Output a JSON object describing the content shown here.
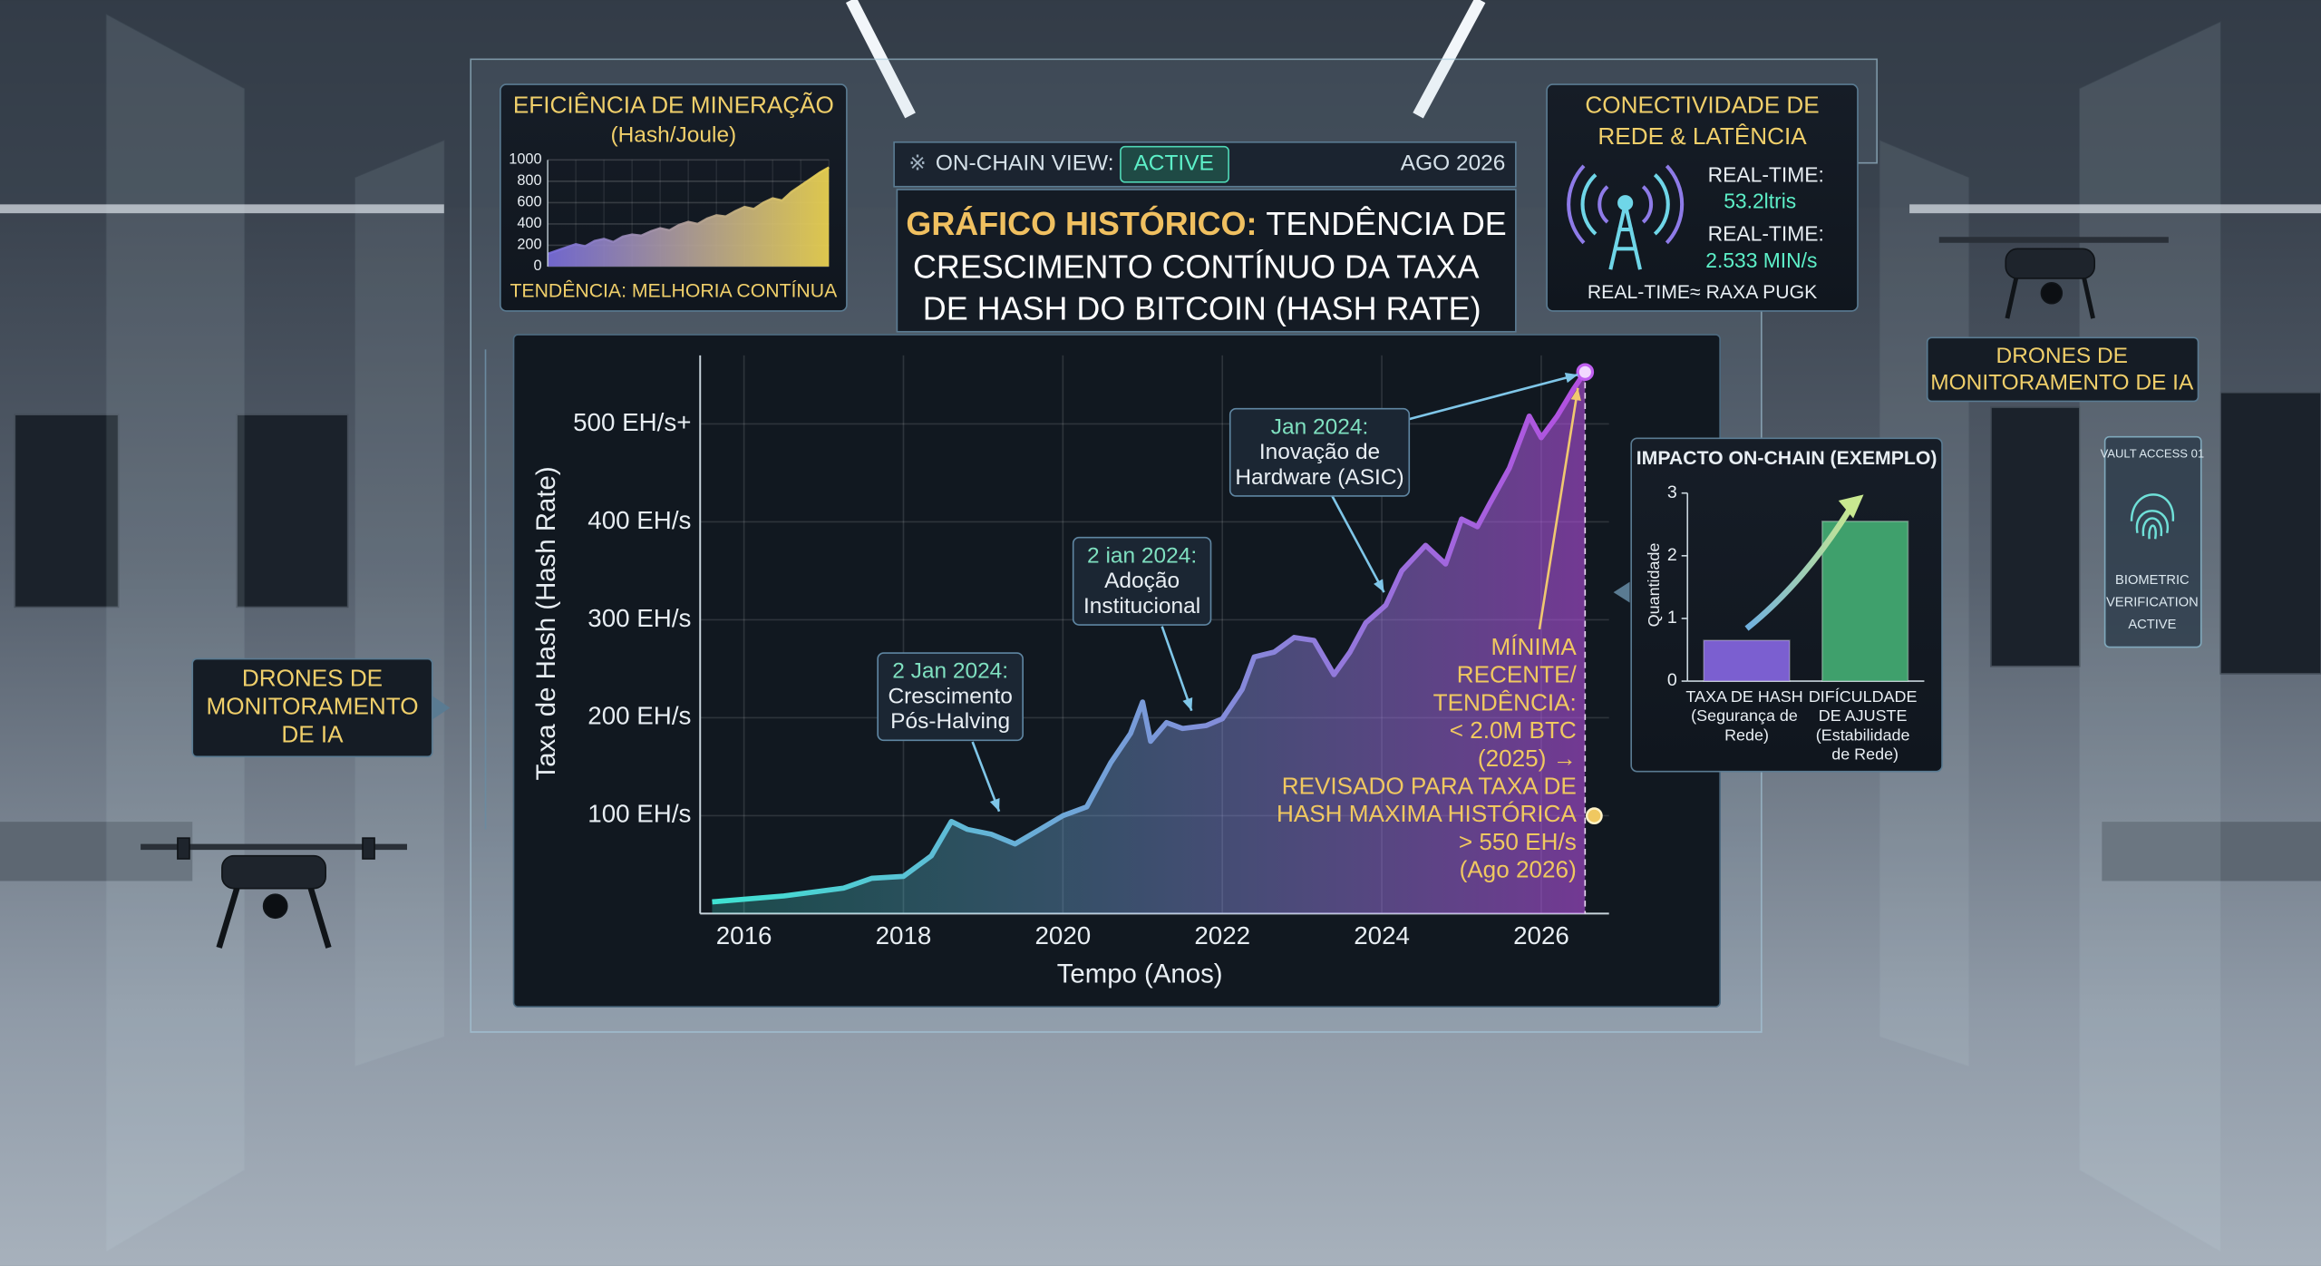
{
  "status_bar": {
    "label": "ON-CHAIN VIEW:",
    "state": "ACTIVE",
    "date": "AGO 2026"
  },
  "header": {
    "lead": "GRÁFICO HISTÓRICO:",
    "lines": [
      "TENDÊNCIA DE",
      "CRESCIMENTO CONTÍNUO DA TAXA",
      "DE HASH DO BITCOIN (HASH RATE)"
    ]
  },
  "connectivity": {
    "title": [
      "CONECTIVIDADE DE",
      "REDE & LATÊNCIA"
    ],
    "rows": [
      {
        "label": "REAL-TIME:",
        "value": "53.2ltris"
      },
      {
        "label": "REAL-TIME:",
        "value": "2.533 MIN/s"
      }
    ],
    "footer": "REAL-TIME≈ RAXA PUGK"
  },
  "drone_labels": {
    "left": [
      "DRONES DE",
      "MONITORAMENTO",
      "DE IA"
    ],
    "right": [
      "DRONES DE",
      "MONITORAMENTO DE IA"
    ]
  },
  "biometric": {
    "header": "VAULT ACCESS 01",
    "lines": [
      "BIOMETRIC",
      "VERIFICATION",
      "ACTIVE"
    ]
  },
  "chart_data": [
    {
      "type": "line",
      "x_label": "Tempo (Anos)",
      "y_label": "Taxa de Hash (Hash Rate)",
      "xlim": [
        2015.45,
        2026.85
      ],
      "xticks": [
        2016,
        2018,
        2020,
        2022,
        2024,
        2026
      ],
      "ylim": [
        0,
        570
      ],
      "yticks": [
        {
          "value": 100,
          "label": "100 EH/s"
        },
        {
          "value": 200,
          "label": "200 EH/s"
        },
        {
          "value": 300,
          "label": "300 EH/s"
        },
        {
          "value": 400,
          "label": "400 EH/s"
        },
        {
          "value": 500,
          "label": "500 EH/s+"
        }
      ],
      "grid": true,
      "series": [
        {
          "color": "#3fe3d2",
          "end_color": "#b44fe0",
          "x": [
            2015.6,
            2016.5,
            2017.25,
            2017.6,
            2018.0,
            2018.35,
            2018.6,
            2018.8,
            2019.1,
            2019.4,
            2019.65,
            2020.0,
            2020.3,
            2020.6,
            2020.85,
            2021.0,
            2021.1,
            2021.3,
            2021.5,
            2021.8,
            2022.0,
            2022.25,
            2022.4,
            2022.65,
            2022.9,
            2023.15,
            2023.4,
            2023.6,
            2023.8,
            2024.05,
            2024.25,
            2024.55,
            2024.8,
            2025.0,
            2025.2,
            2025.35,
            2025.6,
            2025.85,
            2026.0,
            2026.2,
            2026.4,
            2026.55
          ],
          "values": [
            12,
            18,
            26,
            36,
            38,
            59,
            94,
            86,
            81,
            71,
            83,
            100,
            109,
            154,
            184,
            216,
            176,
            195,
            189,
            192,
            199,
            229,
            262,
            267,
            282,
            279,
            244,
            267,
            297,
            315,
            350,
            376,
            357,
            403,
            395,
            418,
            455,
            508,
            486,
            508,
            535,
            553
          ]
        }
      ],
      "annotations": [
        {
          "lines": [
            "2 Jan 2024:",
            "Crescimento",
            "Pós-Halving"
          ]
        },
        {
          "lines": [
            "2 ian 2024:",
            "Adoção",
            "Institucional"
          ]
        },
        {
          "lines": [
            "Jan 2024:",
            "Inovação de",
            "Hardware (ASIC)"
          ]
        },
        {
          "lines": [
            "MÍNIMA",
            "RECENTE/",
            "TENDÊNCIA:",
            "< 2.0M BTC",
            "(2025) →",
            "REVISADO PARA TAXA DE",
            "HASH MAXIMA HISTÓRICA",
            "> 550 EH/s",
            "(Ago 2026)"
          ]
        }
      ]
    },
    {
      "type": "area",
      "title": "EFICIÊNCIA DE MINERAÇÃO",
      "subtitle": "(Hash/Joule)",
      "footer": "TENDÊNCIA: MELHORIA CONTÍNUA",
      "ylim": [
        0,
        1000
      ],
      "yticks": [
        0,
        200,
        400,
        600,
        800,
        1000
      ],
      "grid": true,
      "color": "#7b6fe0",
      "end_color": "#e8d050",
      "values": [
        120,
        150,
        180,
        210,
        190,
        240,
        260,
        230,
        280,
        300,
        290,
        330,
        360,
        340,
        390,
        420,
        400,
        450,
        480,
        470,
        520,
        560,
        540,
        600,
        640,
        620,
        700,
        760,
        820,
        880,
        930
      ]
    },
    {
      "type": "bar",
      "title": "IMPACTO ON-CHAIN (EXEMPLO)",
      "y_label": "Quantidade",
      "categories": [
        "TAXA DE HASH (Segurança de Rede)",
        "DIFÍCULDADE DE AJUSTE (Estabilidade de Rede)"
      ],
      "values": [
        0.65,
        2.55
      ],
      "colors": [
        "#7b5fd0",
        "#3fa06c"
      ],
      "ylim": [
        0,
        3
      ],
      "yticks": [
        0,
        1,
        2,
        3
      ]
    }
  ]
}
